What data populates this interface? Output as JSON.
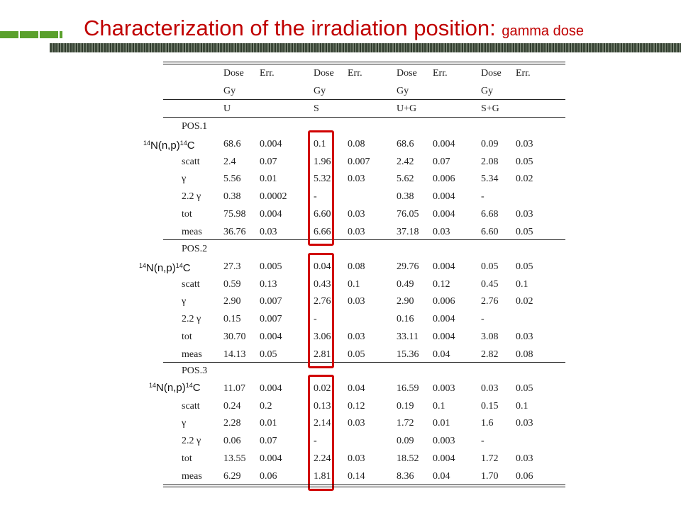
{
  "title": {
    "main": "Characterization of the irradiation position:",
    "sub": "gamma dose"
  },
  "table": {
    "header_row1": [
      "Dose",
      "Err.",
      "Dose",
      "Err.",
      "Dose",
      "Err.",
      "Dose",
      "Err."
    ],
    "header_row2": [
      "Gy",
      "",
      "Gy",
      "",
      "Gy",
      "",
      "Gy",
      ""
    ],
    "header_row3": [
      "U",
      "",
      "S",
      "",
      "U+G",
      "",
      "S+G",
      ""
    ],
    "sections": [
      {
        "name": "POS.1",
        "rows": [
          {
            "label": "",
            "values": [
              "68.6",
              "0.004",
              "0.1",
              "0.08",
              "68.6",
              "0.004",
              "0.09",
              "0.03"
            ]
          },
          {
            "label": "scatt",
            "values": [
              "2.4",
              "0.07",
              "1.96",
              "0.007",
              "2.42",
              "0.07",
              "2.08",
              "0.05"
            ]
          },
          {
            "label": "γ",
            "values": [
              "5.56",
              "0.01",
              "5.32",
              "0.03",
              "5.62",
              "0.006",
              "5.34",
              "0.02"
            ]
          },
          {
            "label": "2.2 γ",
            "values": [
              "0.38",
              "0.0002",
              "-",
              "",
              "0.38",
              "0.004",
              "-",
              ""
            ]
          },
          {
            "label": "tot",
            "values": [
              "75.98",
              "0.004",
              "6.60",
              "0.03",
              "76.05",
              "0.004",
              "6.68",
              "0.03"
            ]
          },
          {
            "label": "meas",
            "values": [
              "36.76",
              "0.03",
              "6.66",
              "0.03",
              "37.18",
              "0.03",
              "6.60",
              "0.05"
            ]
          }
        ]
      },
      {
        "name": "POS.2",
        "rows": [
          {
            "label": "",
            "values": [
              "27.3",
              "0.005",
              "0.04",
              "0.08",
              "29.76",
              "0.004",
              "0.05",
              "0.05"
            ]
          },
          {
            "label": "scatt",
            "values": [
              "0.59",
              "0.13",
              "0.43",
              "0.1",
              "0.49",
              "0.12",
              "0.45",
              "0.1"
            ]
          },
          {
            "label": "γ",
            "values": [
              "2.90",
              "0.007",
              "2.76",
              "0.03",
              "2.90",
              "0.006",
              "2.76",
              "0.02"
            ]
          },
          {
            "label": "2.2 γ",
            "values": [
              "0.15",
              "0.007",
              "-",
              "",
              "0.16",
              "0.004",
              "-",
              ""
            ]
          },
          {
            "label": "tot",
            "values": [
              "30.70",
              "0.004",
              "3.06",
              "0.03",
              "33.11",
              "0.004",
              "3.08",
              "0.03"
            ]
          },
          {
            "label": "meas",
            "values": [
              "14.13",
              "0.05",
              "2.81",
              "0.05",
              "15.36",
              "0.04",
              "2.82",
              "0.08"
            ]
          }
        ]
      },
      {
        "name": "POS.3",
        "rows": [
          {
            "label": "",
            "values": [
              "11.07",
              "0.004",
              "0.02",
              "0.04",
              "16.59",
              "0.003",
              "0.03",
              "0.05"
            ]
          },
          {
            "label": "scatt",
            "values": [
              "0.24",
              "0.2",
              "0.13",
              "0.12",
              "0.19",
              "0.1",
              "0.15",
              "0.1"
            ]
          },
          {
            "label": "γ",
            "values": [
              "2.28",
              "0.01",
              "2.14",
              "0.03",
              "1.72",
              "0.01",
              "1.6",
              "0.03"
            ]
          },
          {
            "label": "2.2 γ",
            "values": [
              "0.06",
              "0.07",
              "-",
              "",
              "0.09",
              "0.003",
              "-",
              ""
            ]
          },
          {
            "label": "tot",
            "values": [
              "13.55",
              "0.004",
              "2.24",
              "0.03",
              "18.52",
              "0.004",
              "1.72",
              "0.03"
            ]
          },
          {
            "label": "meas",
            "values": [
              "6.29",
              "0.06",
              "1.81",
              "0.14",
              "8.36",
              "0.04",
              "1.70",
              "0.06"
            ]
          }
        ]
      }
    ]
  },
  "overlay_labels": [
    {
      "pre": "14",
      "mid": "N(n,p)",
      "sup": "14",
      "post": "C"
    },
    {
      "pre": "14",
      "mid": "N(n,p)",
      "sup": "14",
      "post": "C"
    },
    {
      "pre": "14",
      "mid": "N(n,p)",
      "sup": "14",
      "post": "C"
    }
  ],
  "colors": {
    "title": "#c00000",
    "highlight_box": "#d00000",
    "accent_green": "#5aa02c"
  }
}
